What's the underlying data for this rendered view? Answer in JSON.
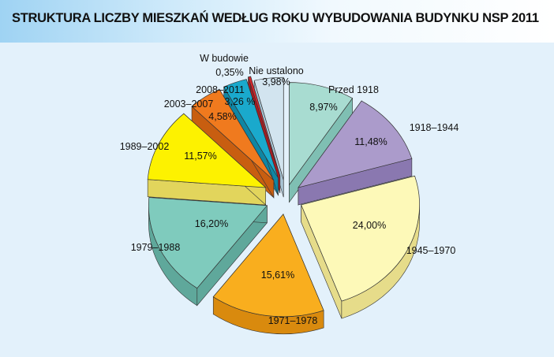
{
  "title": "STRUKTURA LICZBY MIESZKAŃ WEDŁUG ROKU WYBUDOWANIA BUDYNKU NSP 2011",
  "chart_data": {
    "type": "pie",
    "title": "STRUKTURA LICZBY MIESZKAŃ WEDŁUG ROKU WYBUDOWANIA BUDYNKU NSP 2011",
    "style": "exploded-3d",
    "unit": "%",
    "slices": [
      {
        "label": "Przed 1918",
        "value": 8.97,
        "value_label": "8,97%",
        "color": "#a8dcd1",
        "side": "#7fbfb3"
      },
      {
        "label": "1918–1944",
        "value": 11.48,
        "value_label": "11,48%",
        "color": "#ab9bcb",
        "side": "#8a78b0"
      },
      {
        "label": "1945–1970",
        "value": 24.0,
        "value_label": "24,00%",
        "color": "#fdf9b8",
        "side": "#e6dc8a"
      },
      {
        "label": "1971–1978",
        "value": 15.61,
        "value_label": "15,61%",
        "color": "#f9ae1e",
        "side": "#d98a0e"
      },
      {
        "label": "1979–1988",
        "value": 16.2,
        "value_label": "16,20%",
        "color": "#7fcbbd",
        "side": "#5fa89b"
      },
      {
        "label": "1989–2002",
        "value": 11.57,
        "value_label": "11,57%",
        "color": "#fdf200",
        "side": "#e2d55c"
      },
      {
        "label": "2003–2007",
        "value": 4.58,
        "value_label": "4,58%",
        "color": "#f07a1e",
        "side": "#c85e10"
      },
      {
        "label": "2008–2011",
        "value": 3.26,
        "value_label": "3,26 %",
        "color": "#1aa9cc",
        "side": "#0f86a3"
      },
      {
        "label": "W budowie",
        "value": 0.35,
        "value_label": "0,35%",
        "color": "#d7262c",
        "side": "#a81b20"
      },
      {
        "label": "Nie ustalono",
        "value": 3.98,
        "value_label": "3,98%",
        "color": "#d2e4ef",
        "side": "#a9c4d4"
      }
    ]
  }
}
